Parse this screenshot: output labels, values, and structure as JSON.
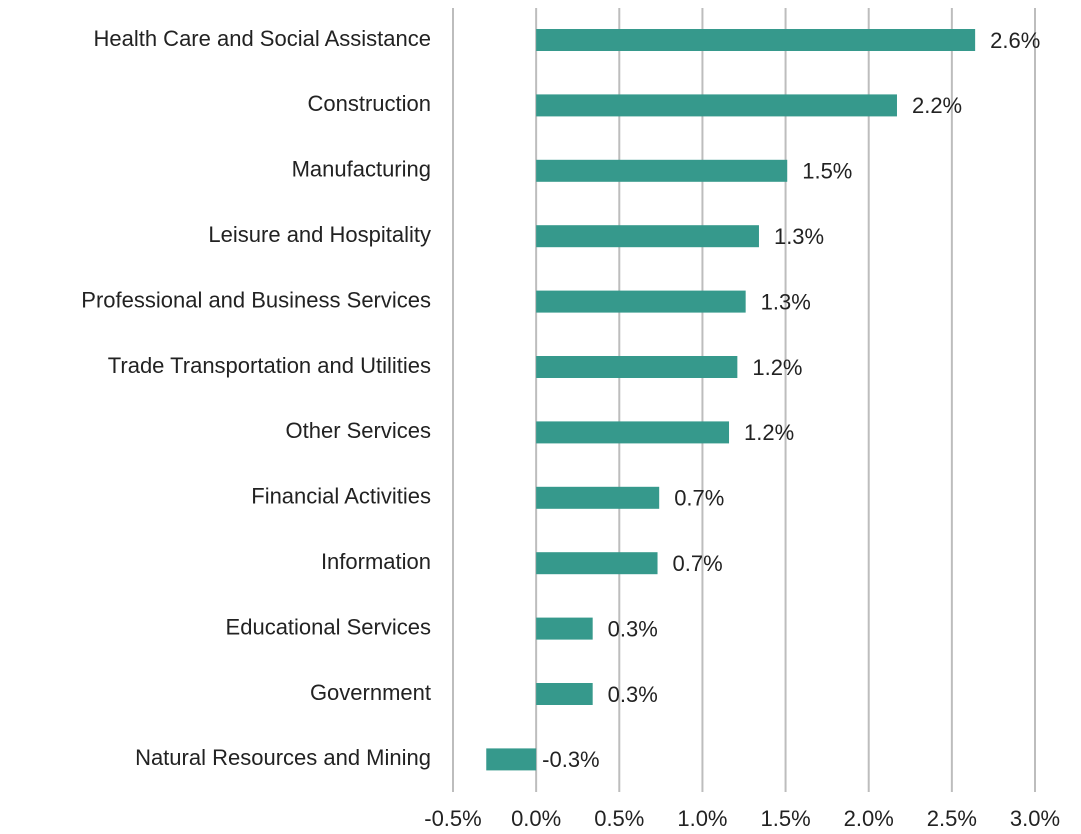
{
  "chart_data": {
    "type": "bar",
    "orientation": "horizontal",
    "categories": [
      "Health Care and Social Assistance",
      "Construction",
      "Manufacturing",
      "Leisure and Hospitality",
      "Professional and Business Services",
      "Trade Transportation and Utilities",
      "Other Services",
      "Financial Activities",
      "Information",
      "Educational Services",
      "Government",
      "Natural Resources and Mining"
    ],
    "values": [
      2.64,
      2.17,
      1.51,
      1.34,
      1.26,
      1.21,
      1.16,
      0.74,
      0.73,
      0.34,
      0.34,
      -0.3
    ],
    "value_labels": [
      "2.6%",
      "2.2%",
      "1.5%",
      "1.3%",
      "1.3%",
      "1.2%",
      "1.2%",
      "0.7%",
      "0.7%",
      "0.3%",
      "0.3%",
      "-0.3%"
    ],
    "color": "#36998c",
    "xlim": [
      -0.5,
      3.0
    ],
    "xticks": [
      {
        "value": -0.5,
        "label": "-0.5%"
      },
      {
        "value": 0,
        "label": "0.0%"
      },
      {
        "value": 0.5,
        "label": "0.5%"
      },
      {
        "value": 1.0,
        "label": "1.0%"
      },
      {
        "value": 1.5,
        "label": "1.5%"
      },
      {
        "value": 2.0,
        "label": "2.0%"
      },
      {
        "value": 2.5,
        "label": "2.5%"
      },
      {
        "value": 3.0,
        "label": "3.0%"
      }
    ],
    "grid": true
  }
}
